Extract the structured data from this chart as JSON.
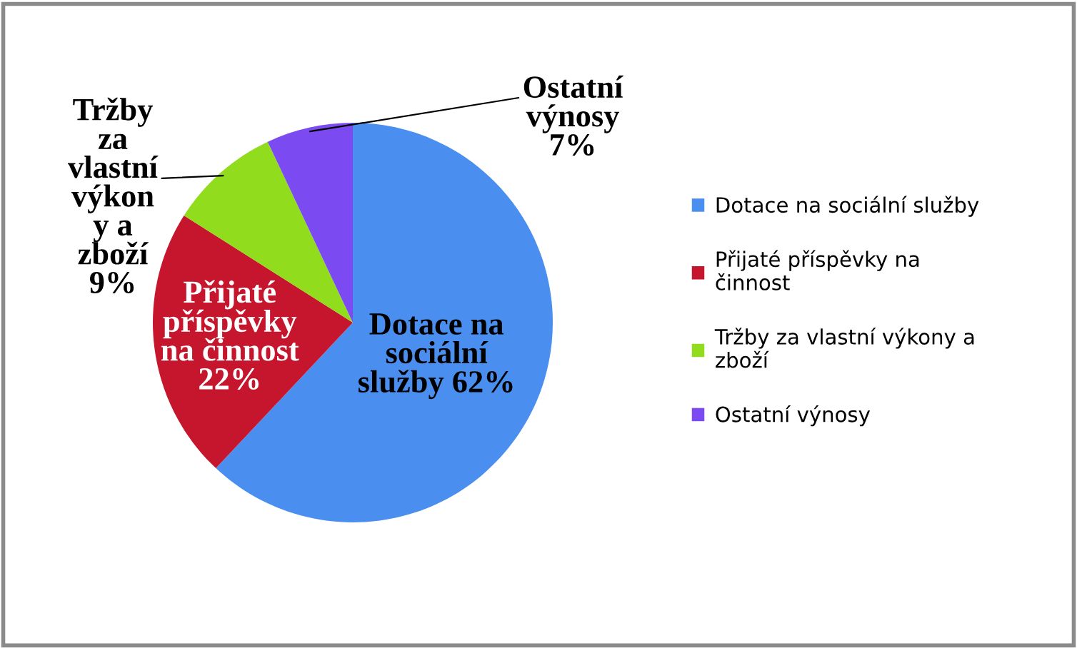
{
  "chart_data": {
    "type": "pie",
    "categories": [
      "Dotace na sociální služby",
      "Přijaté příspěvky na činnost",
      "Tržby za vlastní výkony a zboží",
      "Ostatní výnosy"
    ],
    "values": [
      62,
      22,
      9,
      7
    ],
    "colors": [
      "#4a8ff0",
      "#c5162e",
      "#92dc1e",
      "#7b4af0"
    ],
    "value_labels": [
      "Dotace na\nsociální\nslužby 62%",
      "Přijaté\npříspěvky\nna činnost\n22%",
      "Tržby\nza\nvlastní\nvýkon\ny a\nzboží\n9%",
      "Ostatní\nvýnosy\n7%"
    ],
    "legend": "right"
  }
}
